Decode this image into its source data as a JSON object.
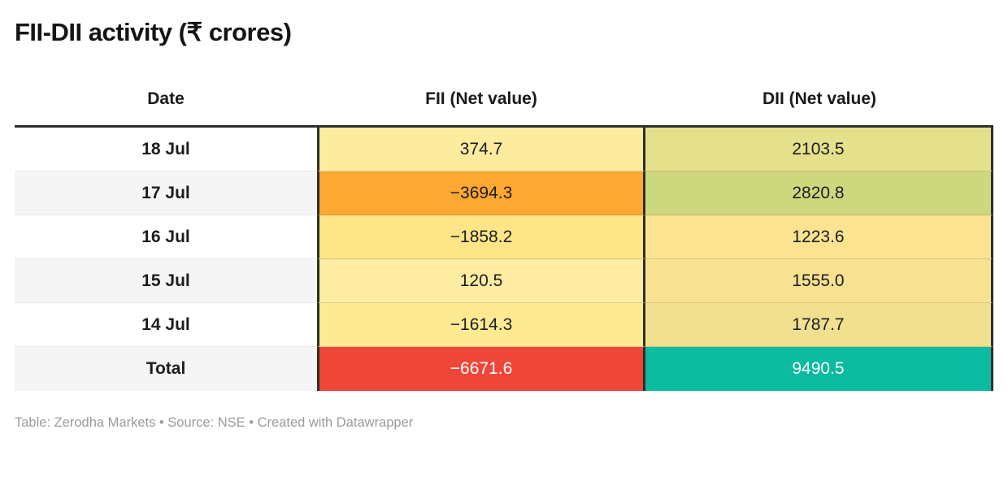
{
  "title": "FII-DII activity (₹ crores)",
  "footer": "Table: Zerodha Markets • Source: NSE • Created with Datawrapper",
  "colors": {
    "header_border": "#2e2e2e",
    "column_border": "#2e2e2e",
    "row_stripe": "#f5f5f5",
    "row_plain": "#ffffff",
    "total_fii_bg": "#ee4639",
    "total_dii_bg": "#0abb9f",
    "total_text": "#ffffff",
    "footer_text": "#9b9b9b"
  },
  "chart_data": {
    "type": "table",
    "title": "FII-DII activity (₹ crores)",
    "columns": [
      "Date",
      "FII (Net value)",
      "DII (Net value)"
    ],
    "rows": [
      {
        "date": "18 Jul",
        "fii": "374.7",
        "dii": "2103.5",
        "fii_value": 374.7,
        "dii_value": 2103.5,
        "date_bg": "#ffffff",
        "fii_bg": "#fdeb9e",
        "dii_bg": "#e5e08b"
      },
      {
        "date": "17 Jul",
        "fii": "−3694.3",
        "dii": "2820.8",
        "fii_value": -3694.3,
        "dii_value": 2820.8,
        "date_bg": "#f5f5f5",
        "fii_bg": "#fca832",
        "dii_bg": "#cdd87e"
      },
      {
        "date": "16 Jul",
        "fii": "−1858.2",
        "dii": "1223.6",
        "fii_value": -1858.2,
        "dii_value": 1223.6,
        "date_bg": "#ffffff",
        "fii_bg": "#fde588",
        "dii_bg": "#fbe392"
      },
      {
        "date": "15 Jul",
        "fii": "120.5",
        "dii": "1555.0",
        "fii_value": 120.5,
        "dii_value": 1555.0,
        "date_bg": "#f5f5f5",
        "fii_bg": "#fdeca2",
        "dii_bg": "#f8e292"
      },
      {
        "date": "14 Jul",
        "fii": "−1614.3",
        "dii": "1787.7",
        "fii_value": -1614.3,
        "dii_value": 1787.7,
        "date_bg": "#ffffff",
        "fii_bg": "#fdea93",
        "dii_bg": "#f0e08f"
      }
    ],
    "total": {
      "label": "Total",
      "fii": "−6671.6",
      "dii": "9490.5",
      "fii_value": -6671.6,
      "dii_value": 9490.5,
      "date_bg": "#f5f5f5",
      "fii_bg": "#ee4639",
      "dii_bg": "#0abb9f"
    }
  }
}
